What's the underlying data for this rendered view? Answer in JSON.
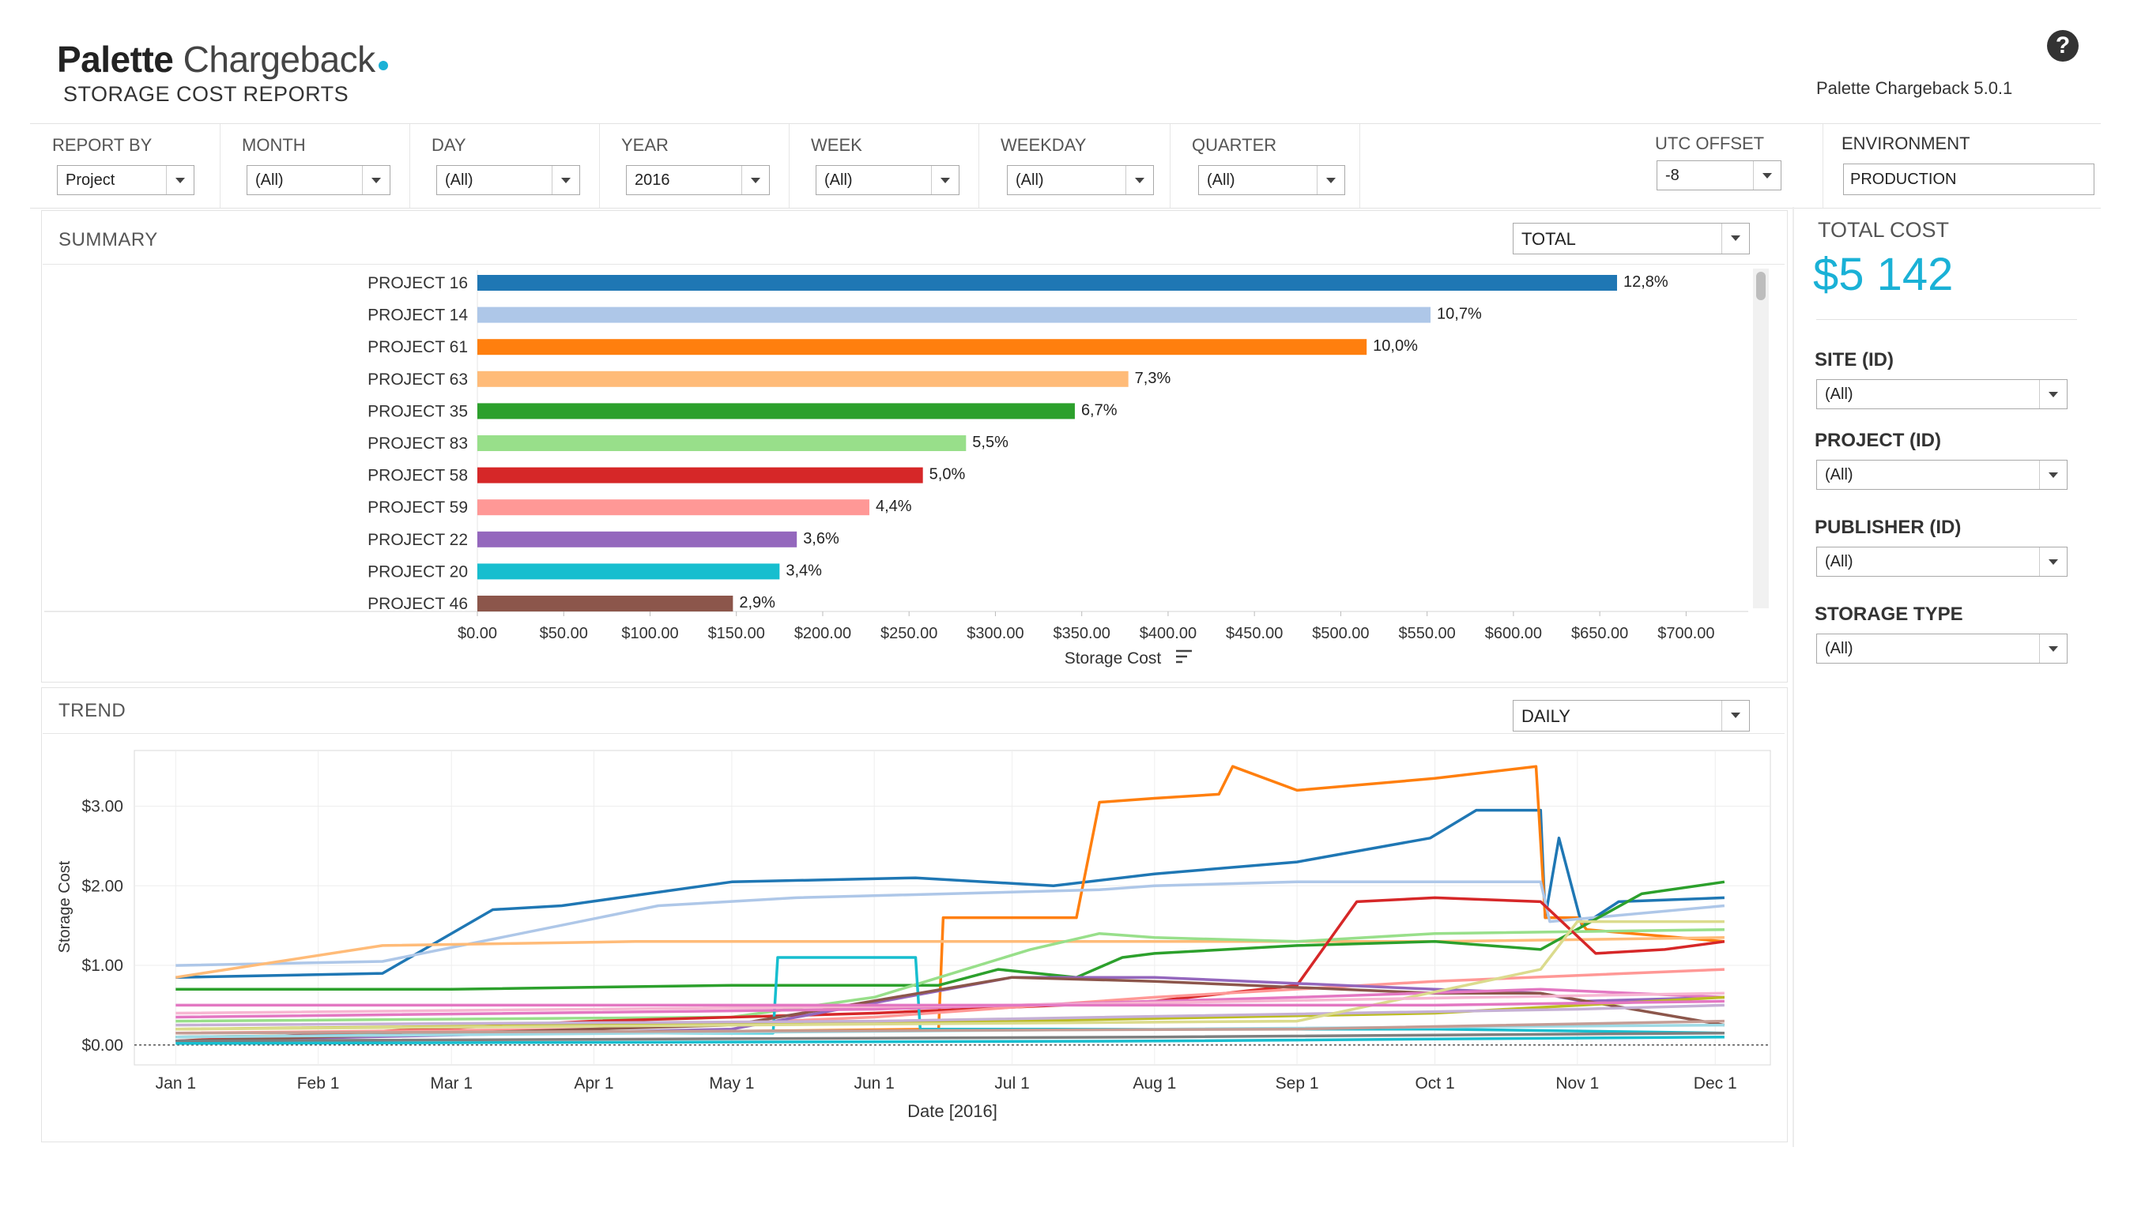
{
  "app": {
    "logo_bold": "Palette",
    "logo_light": "Chargeback",
    "subtitle": "STORAGE COST REPORTS",
    "version": "Palette Chargeback 5.0.1",
    "help_symbol": "?"
  },
  "filters": [
    {
      "label": "REPORT BY",
      "value": "Project"
    },
    {
      "label": "MONTH",
      "value": "(All)"
    },
    {
      "label": "DAY",
      "value": "(All)"
    },
    {
      "label": "YEAR",
      "value": "2016"
    },
    {
      "label": "WEEK",
      "value": "(All)"
    },
    {
      "label": "WEEKDAY",
      "value": "(All)"
    },
    {
      "label": "QUARTER",
      "value": "(All)"
    },
    {
      "label": "UTC OFFSET",
      "value": "-8"
    }
  ],
  "environment": {
    "label": "ENVIRONMENT",
    "value": "PRODUCTION"
  },
  "total_cost": {
    "label": "TOTAL COST",
    "value": "$5 142",
    "color": "#1ab1d6"
  },
  "side_filters": [
    {
      "label": "SITE (ID)",
      "value": "(All)"
    },
    {
      "label": "PROJECT (ID)",
      "value": "(All)"
    },
    {
      "label": "PUBLISHER (ID)",
      "value": "(All)"
    },
    {
      "label": "STORAGE TYPE",
      "value": "(All)"
    }
  ],
  "summary": {
    "title": "SUMMARY",
    "mode": "TOTAL"
  },
  "trend": {
    "title": "TREND",
    "mode": "DAILY"
  },
  "chart_data": [
    {
      "type": "bar",
      "orientation": "horizontal",
      "categories": [
        "PROJECT 16",
        "PROJECT 14",
        "PROJECT 61",
        "PROJECT 63",
        "PROJECT 35",
        "PROJECT 83",
        "PROJECT 58",
        "PROJECT 59",
        "PROJECT 22",
        "PROJECT 20",
        "PROJECT 46"
      ],
      "values": [
        660,
        552,
        515,
        377,
        346,
        283,
        258,
        227,
        185,
        175,
        148
      ],
      "labels": [
        "12,8%",
        "10,7%",
        "10,0%",
        "7,3%",
        "6,7%",
        "5,5%",
        "5,0%",
        "4,4%",
        "3,6%",
        "3,4%",
        "2,9%"
      ],
      "colors": [
        "#1f77b4",
        "#aec7e8",
        "#ff7f0e",
        "#ffbb78",
        "#2ca02c",
        "#98df8a",
        "#d62728",
        "#ff9896",
        "#9467bd",
        "#17becf",
        "#8c564b"
      ],
      "xlabel": "Storage Cost",
      "xlim": [
        0,
        725
      ],
      "xticks": [
        0,
        50,
        100,
        150,
        200,
        250,
        300,
        350,
        400,
        450,
        500,
        550,
        600,
        650,
        700
      ],
      "xtick_labels": [
        "$0.00",
        "$50.00",
        "$100.00",
        "$150.00",
        "$200.00",
        "$250.00",
        "$300.00",
        "$350.00",
        "$400.00",
        "$450.00",
        "$500.00",
        "$550.00",
        "$600.00",
        "$650.00",
        "$700.00"
      ]
    },
    {
      "type": "line",
      "xlabel": "Date [2016]",
      "ylabel": "Storage Cost",
      "xlim": [
        "2015-12-23",
        "2016-12-13"
      ],
      "ylim": [
        -0.25,
        3.7
      ],
      "xticks": [
        "2016-01-01",
        "2016-02-01",
        "2016-03-01",
        "2016-04-01",
        "2016-05-01",
        "2016-06-01",
        "2016-07-01",
        "2016-08-01",
        "2016-09-01",
        "2016-10-01",
        "2016-11-01",
        "2016-12-01"
      ],
      "xtick_labels": [
        "Jan 1",
        "Feb 1",
        "Mar 1",
        "Apr 1",
        "May 1",
        "Jun 1",
        "Jul 1",
        "Aug 1",
        "Sep 1",
        "Oct 1",
        "Nov 1",
        "Dec 1"
      ],
      "yticks": [
        0,
        1,
        2,
        3
      ],
      "ytick_labels": [
        "$0.00",
        "$1.00",
        "$2.00",
        "$3.00"
      ],
      "series": [
        {
          "color": "#1f77b4",
          "x": [
            "2016-01-01",
            "2016-02-15",
            "2016-03-10",
            "2016-03-25",
            "2016-05-01",
            "2016-06-10",
            "2016-07-10",
            "2016-08-01",
            "2016-09-01",
            "2016-09-30",
            "2016-10-10",
            "2016-10-24",
            "2016-10-25",
            "2016-10-28",
            "2016-11-02",
            "2016-11-10",
            "2016-12-03"
          ],
          "y": [
            0.85,
            0.9,
            1.7,
            1.75,
            2.05,
            2.1,
            2.0,
            2.15,
            2.3,
            2.6,
            2.95,
            2.95,
            1.6,
            2.6,
            1.5,
            1.8,
            1.85
          ]
        },
        {
          "color": "#ff7f0e",
          "x": [
            "2016-01-01",
            "2016-06-15",
            "2016-06-16",
            "2016-07-15",
            "2016-07-20",
            "2016-08-01",
            "2016-08-15",
            "2016-08-18",
            "2016-09-01",
            "2016-10-01",
            "2016-10-23",
            "2016-10-25",
            "2016-11-01",
            "2016-11-03",
            "2016-12-03"
          ],
          "y": [
            0.1,
            0.2,
            1.6,
            1.6,
            3.05,
            3.1,
            3.15,
            3.5,
            3.2,
            3.35,
            3.5,
            1.6,
            1.6,
            1.45,
            1.3
          ]
        },
        {
          "color": "#aec7e8",
          "x": [
            "2016-01-01",
            "2016-02-15",
            "2016-04-15",
            "2016-05-15",
            "2016-07-20",
            "2016-08-01",
            "2016-09-01",
            "2016-10-01",
            "2016-10-24",
            "2016-10-26",
            "2016-12-03"
          ],
          "y": [
            1.0,
            1.05,
            1.75,
            1.85,
            1.95,
            2.0,
            2.05,
            2.05,
            2.05,
            1.55,
            1.75
          ]
        },
        {
          "color": "#ffbb78",
          "x": [
            "2016-01-01",
            "2016-02-15",
            "2016-04-10",
            "2016-06-10",
            "2016-08-01",
            "2016-10-01",
            "2016-12-03"
          ],
          "y": [
            0.85,
            1.25,
            1.3,
            1.3,
            1.3,
            1.3,
            1.35
          ]
        },
        {
          "color": "#2ca02c",
          "x": [
            "2016-01-01",
            "2016-03-01",
            "2016-05-01",
            "2016-06-15",
            "2016-06-28",
            "2016-07-15",
            "2016-07-25",
            "2016-08-01",
            "2016-09-01",
            "2016-10-01",
            "2016-10-24",
            "2016-11-15",
            "2016-12-03"
          ],
          "y": [
            0.7,
            0.7,
            0.75,
            0.75,
            0.95,
            0.85,
            1.1,
            1.15,
            1.25,
            1.3,
            1.2,
            1.9,
            2.05
          ]
        },
        {
          "color": "#98df8a",
          "x": [
            "2016-01-01",
            "2016-05-01",
            "2016-06-01",
            "2016-07-05",
            "2016-07-20",
            "2016-08-01",
            "2016-09-01",
            "2016-10-01",
            "2016-12-03"
          ],
          "y": [
            0.3,
            0.35,
            0.6,
            1.2,
            1.4,
            1.35,
            1.3,
            1.4,
            1.45
          ]
        },
        {
          "color": "#d62728",
          "x": [
            "2016-01-01",
            "2016-04-01",
            "2016-06-01",
            "2016-08-01",
            "2016-09-01",
            "2016-09-14",
            "2016-10-01",
            "2016-10-24",
            "2016-11-05",
            "2016-11-20",
            "2016-12-03"
          ],
          "y": [
            0.05,
            0.3,
            0.4,
            0.55,
            0.75,
            1.8,
            1.85,
            1.8,
            1.15,
            1.2,
            1.3
          ]
        },
        {
          "color": "#ff9896",
          "x": [
            "2016-01-01",
            "2016-04-01",
            "2016-06-01",
            "2016-08-01",
            "2016-10-01",
            "2016-12-03"
          ],
          "y": [
            0.15,
            0.2,
            0.35,
            0.6,
            0.8,
            0.95
          ]
        },
        {
          "color": "#9467bd",
          "x": [
            "2016-01-01",
            "2016-05-01",
            "2016-07-01",
            "2016-08-01",
            "2016-10-01",
            "2016-10-24",
            "2016-11-02",
            "2016-12-03"
          ],
          "y": [
            0.05,
            0.2,
            0.85,
            0.85,
            0.7,
            0.65,
            0.55,
            0.6
          ]
        },
        {
          "color": "#17becf",
          "x": [
            "2016-01-01",
            "2016-04-01",
            "2016-05-10",
            "2016-05-11",
            "2016-06-10",
            "2016-06-11",
            "2016-10-01",
            "2016-12-03"
          ],
          "y": [
            0.1,
            0.15,
            0.15,
            1.1,
            1.1,
            0.2,
            0.2,
            0.15
          ]
        },
        {
          "color": "#8c564b",
          "x": [
            "2016-01-01",
            "2016-05-01",
            "2016-07-01",
            "2016-08-01",
            "2016-10-01",
            "2016-10-24",
            "2016-12-03"
          ],
          "y": [
            0.05,
            0.25,
            0.85,
            0.8,
            0.65,
            0.65,
            0.25
          ]
        },
        {
          "color": "#e377c2",
          "x": [
            "2016-01-01",
            "2016-06-01",
            "2016-09-01",
            "2016-10-24",
            "2016-12-03"
          ],
          "y": [
            0.35,
            0.45,
            0.6,
            0.7,
            0.6
          ]
        },
        {
          "color": "#7f7f7f",
          "x": [
            "2016-01-01",
            "2016-08-01",
            "2016-12-03"
          ],
          "y": [
            0.05,
            0.1,
            0.15
          ]
        },
        {
          "color": "#bcbd22",
          "x": [
            "2016-01-01",
            "2016-07-01",
            "2016-10-01",
            "2016-12-03"
          ],
          "y": [
            0.2,
            0.3,
            0.4,
            0.6
          ]
        },
        {
          "color": "#c5b0d5",
          "x": [
            "2016-01-01",
            "2016-06-01",
            "2016-11-01",
            "2016-12-03"
          ],
          "y": [
            0.25,
            0.3,
            0.45,
            0.5
          ]
        },
        {
          "color": "#dbdb8d",
          "x": [
            "2016-01-01",
            "2016-09-01",
            "2016-10-24",
            "2016-11-01",
            "2016-12-03"
          ],
          "y": [
            0.2,
            0.3,
            0.95,
            1.55,
            1.55
          ]
        },
        {
          "color": "#9edae5",
          "x": [
            "2016-01-01",
            "2016-08-01",
            "2016-12-03"
          ],
          "y": [
            0.1,
            0.2,
            0.25
          ]
        },
        {
          "color": "#f7b6d2",
          "x": [
            "2016-01-01",
            "2016-07-01",
            "2016-12-03"
          ],
          "y": [
            0.4,
            0.5,
            0.65
          ]
        },
        {
          "color": "#c49c94",
          "x": [
            "2016-01-01",
            "2016-09-01",
            "2016-12-03"
          ],
          "y": [
            0.15,
            0.2,
            0.3
          ]
        },
        {
          "color": "#e377c2",
          "x": [
            "2016-01-01",
            "2016-10-01",
            "2016-12-03"
          ],
          "y": [
            0.5,
            0.5,
            0.55
          ]
        },
        {
          "color": "#17becf",
          "x": [
            "2016-01-01",
            "2016-08-01",
            "2016-12-03"
          ],
          "y": [
            0.02,
            0.05,
            0.1
          ]
        }
      ]
    }
  ]
}
